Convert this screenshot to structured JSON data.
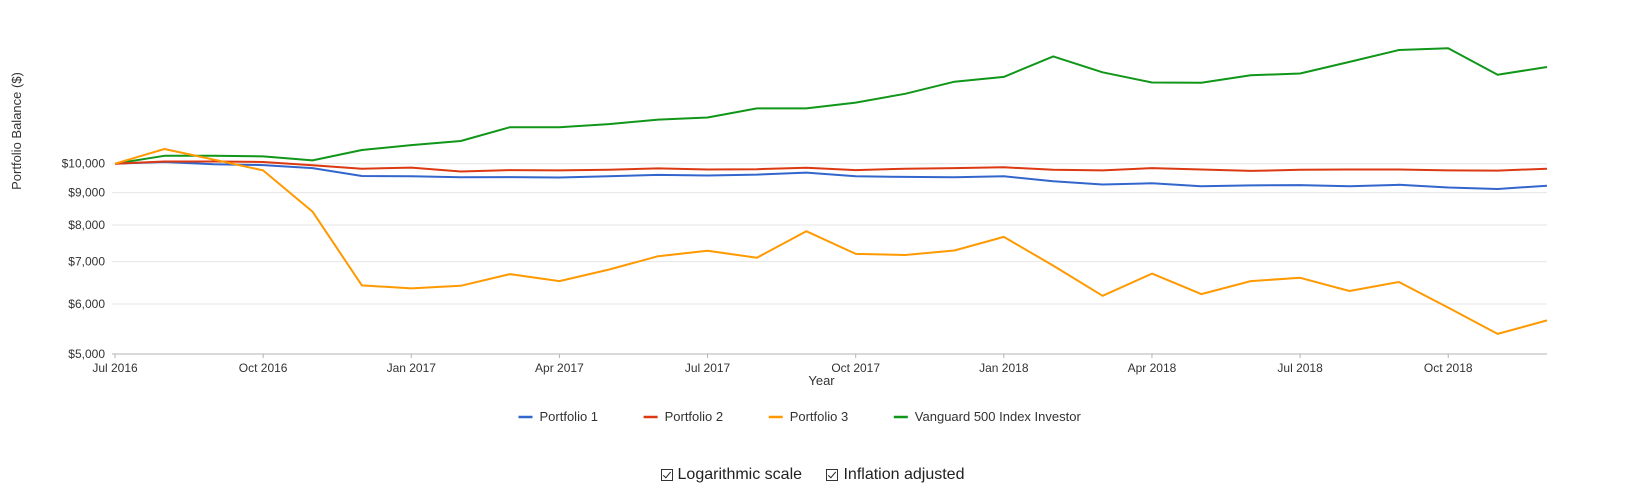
{
  "chart_data": {
    "type": "line",
    "title": "",
    "xlabel": "Year",
    "ylabel": "Portfolio Balance ($)",
    "yscale": "log",
    "ylim": [
      5000,
      17000
    ],
    "yticks": [
      5000,
      6000,
      7000,
      8000,
      9000,
      10000
    ],
    "ytick_labels": [
      "$5,000",
      "$6,000",
      "$7,000",
      "$8,000",
      "$9,000",
      "$10,000"
    ],
    "x": [
      "2016-07",
      "2016-08",
      "2016-09",
      "2016-10",
      "2016-11",
      "2016-12",
      "2017-01",
      "2017-02",
      "2017-03",
      "2017-04",
      "2017-05",
      "2017-06",
      "2017-07",
      "2017-08",
      "2017-09",
      "2017-10",
      "2017-11",
      "2017-12",
      "2018-01",
      "2018-02",
      "2018-03",
      "2018-04",
      "2018-05",
      "2018-06",
      "2018-07",
      "2018-08",
      "2018-09",
      "2018-10",
      "2018-11",
      "2018-12"
    ],
    "xticks": [
      "Jul 2016",
      "Oct 2016",
      "Jan 2017",
      "Apr 2017",
      "Jul 2017",
      "Oct 2017",
      "Jan 2018",
      "Apr 2018",
      "Jul 2018",
      "Oct 2018"
    ],
    "xtick_index": [
      0,
      3,
      6,
      9,
      12,
      15,
      18,
      21,
      24,
      27
    ],
    "grid": true,
    "legend_position": "bottom",
    "series": [
      {
        "name": "Portfolio 1",
        "color": "#3366cc",
        "values": [
          10000,
          10060,
          9980,
          9950,
          9840,
          9560,
          9550,
          9520,
          9525,
          9510,
          9550,
          9600,
          9580,
          9610,
          9680,
          9550,
          9530,
          9520,
          9550,
          9380,
          9270,
          9310,
          9210,
          9240,
          9250,
          9210,
          9260,
          9170,
          9120,
          9230
        ]
      },
      {
        "name": "Portfolio 2",
        "color": "#dc3912",
        "values": [
          10000,
          10080,
          10080,
          10060,
          9940,
          9820,
          9860,
          9720,
          9770,
          9760,
          9780,
          9830,
          9790,
          9800,
          9850,
          9770,
          9820,
          9840,
          9870,
          9780,
          9760,
          9840,
          9790,
          9740,
          9780,
          9790,
          9790,
          9760,
          9750,
          9820
        ]
      },
      {
        "name": "Portfolio 3",
        "color": "#ff9900",
        "values": [
          10000,
          10550,
          10150,
          9760,
          8400,
          6420,
          6350,
          6410,
          6690,
          6520,
          6800,
          7140,
          7280,
          7100,
          7820,
          7200,
          7170,
          7290,
          7660,
          6900,
          6180,
          6700,
          6220,
          6520,
          6600,
          6290,
          6500,
          5920,
          5380,
          5650
        ]
      },
      {
        "name": "Vanguard 500 Index Investor",
        "color": "#109618",
        "values": [
          10000,
          10290,
          10290,
          10270,
          10120,
          10510,
          10700,
          10860,
          11420,
          11420,
          11550,
          11740,
          11830,
          12230,
          12230,
          12490,
          12900,
          13480,
          13720,
          14780,
          13950,
          13440,
          13430,
          13800,
          13890,
          14490,
          15130,
          15230,
          13830,
          14220
        ]
      }
    ]
  },
  "options": {
    "log_scale_label": "Logarithmic scale",
    "inflation_label": "Inflation adjusted"
  }
}
